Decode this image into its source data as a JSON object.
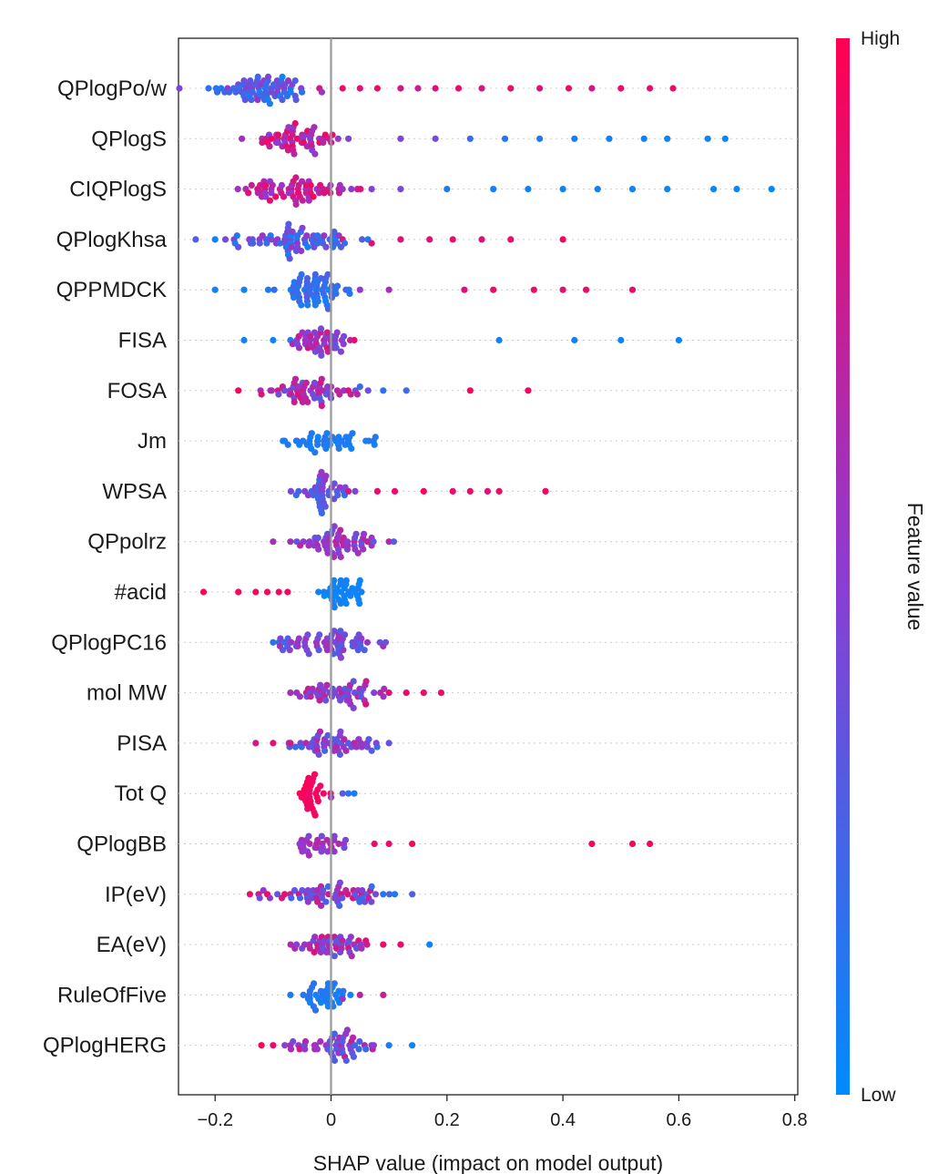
{
  "chart_data": {
    "type": "scatter",
    "subtype": "shap-beeswarm",
    "xlabel": "SHAP value (impact on model output)",
    "xlim": [
      -0.25,
      0.8
    ],
    "xticks": [
      -0.2,
      0,
      0.2,
      0.4,
      0.6,
      0.8
    ],
    "xtick_labels": [
      "−0.2",
      "0",
      "0.2",
      "0.4",
      "0.6",
      "0.8"
    ],
    "features": [
      "QPlogPo/w",
      "QPlogS",
      "CIQPlogS",
      "QPlogKhsa",
      "QPPMDCK",
      "FISA",
      "FOSA",
      "Jm",
      "WPSA",
      "QPpolrz",
      "#acid",
      "QPlogPC16",
      "mol MW",
      "PISA",
      "Tot Q",
      "QPlogBB",
      "IP(eV)",
      "EA(eV)",
      "RuleOfFive",
      "QPlogHERG"
    ],
    "colorbar": {
      "title": "Feature value",
      "high_label": "High",
      "low_label": "Low",
      "high_color": "#ff0051",
      "low_color": "#008bfb"
    },
    "reference_line": 0,
    "series": [
      {
        "feature": "QPlogPo/w",
        "core": {
          "center": -0.13,
          "spread": 0.05,
          "count": 70,
          "v_low": 0.05,
          "v_high": 0.55
        },
        "tail": [
          [
            -0.02,
            0.8
          ],
          [
            0.02,
            0.9
          ],
          [
            0.05,
            0.85
          ],
          [
            0.08,
            0.9
          ],
          [
            0.12,
            0.8
          ],
          [
            0.15,
            0.75
          ],
          [
            0.18,
            0.85
          ],
          [
            0.22,
            0.9
          ],
          [
            0.26,
            0.8
          ],
          [
            0.31,
            0.9
          ],
          [
            0.36,
            0.85
          ],
          [
            0.41,
            0.9
          ],
          [
            0.45,
            0.8
          ],
          [
            0.5,
            0.9
          ],
          [
            0.55,
            0.85
          ],
          [
            0.59,
            0.9
          ]
        ]
      },
      {
        "feature": "QPlogS",
        "core": {
          "center": -0.06,
          "spread": 0.04,
          "count": 55,
          "v_low": 0.45,
          "v_high": 0.95
        },
        "tail": [
          [
            0.03,
            0.45
          ],
          [
            0.12,
            0.45
          ],
          [
            0.18,
            0.4
          ],
          [
            0.24,
            0.2
          ],
          [
            0.3,
            0.12
          ],
          [
            0.36,
            0.1
          ],
          [
            0.42,
            0.08
          ],
          [
            0.48,
            0.06
          ],
          [
            0.54,
            0.05
          ],
          [
            0.58,
            0.05
          ],
          [
            0.65,
            0.04
          ],
          [
            0.68,
            0.03
          ]
        ]
      },
      {
        "feature": "CIQPlogS",
        "core": {
          "center": -0.06,
          "spread": 0.045,
          "count": 65,
          "v_low": 0.5,
          "v_high": 0.95
        },
        "tail": [
          [
            0.02,
            0.55
          ],
          [
            0.07,
            0.45
          ],
          [
            0.12,
            0.4
          ],
          [
            0.2,
            0.1
          ],
          [
            0.28,
            0.08
          ],
          [
            0.34,
            0.06
          ],
          [
            0.4,
            0.06
          ],
          [
            0.46,
            0.05
          ],
          [
            0.52,
            0.04
          ],
          [
            0.58,
            0.04
          ],
          [
            0.66,
            0.03
          ],
          [
            0.7,
            0.03
          ],
          [
            0.76,
            0.02
          ]
        ]
      },
      {
        "feature": "QPlogKhsa",
        "core": {
          "center": -0.06,
          "spread": 0.06,
          "count": 70,
          "v_low": 0.05,
          "v_high": 0.6
        },
        "tail": [
          [
            0.02,
            0.8
          ],
          [
            0.07,
            0.85
          ],
          [
            0.12,
            0.85
          ],
          [
            0.17,
            0.85
          ],
          [
            0.21,
            0.9
          ],
          [
            0.26,
            0.85
          ],
          [
            0.31,
            0.9
          ],
          [
            0.4,
            0.95
          ],
          [
            -0.2,
            0.05
          ]
        ]
      },
      {
        "feature": "QPPMDCK",
        "core": {
          "center": -0.03,
          "spread": 0.03,
          "count": 60,
          "v_low": 0.05,
          "v_high": 0.3
        },
        "tail": [
          [
            -0.2,
            0.05
          ],
          [
            -0.15,
            0.05
          ],
          [
            0.05,
            0.5
          ],
          [
            0.1,
            0.6
          ],
          [
            0.23,
            0.85
          ],
          [
            0.28,
            0.9
          ],
          [
            0.35,
            0.9
          ],
          [
            0.4,
            0.85
          ],
          [
            0.44,
            0.9
          ],
          [
            0.52,
            0.9
          ]
        ]
      },
      {
        "feature": "FISA",
        "core": {
          "center": -0.02,
          "spread": 0.025,
          "count": 45,
          "v_low": 0.35,
          "v_high": 0.8
        },
        "tail": [
          [
            -0.15,
            0.05
          ],
          [
            -0.1,
            0.05
          ],
          [
            -0.07,
            0.08
          ],
          [
            0.04,
            0.9
          ],
          [
            0.29,
            0.05
          ],
          [
            0.42,
            0.05
          ],
          [
            0.5,
            0.05
          ],
          [
            0.6,
            0.05
          ]
        ]
      },
      {
        "feature": "FOSA",
        "core": {
          "center": -0.03,
          "spread": 0.04,
          "count": 55,
          "v_low": 0.3,
          "v_high": 0.85
        },
        "tail": [
          [
            -0.16,
            0.95
          ],
          [
            -0.12,
            0.85
          ],
          [
            0.05,
            0.2
          ],
          [
            0.09,
            0.15
          ],
          [
            0.13,
            0.2
          ],
          [
            0.24,
            0.95
          ],
          [
            0.34,
            0.95
          ]
        ]
      },
      {
        "feature": "Jm",
        "core": {
          "center": -0.01,
          "spread": 0.04,
          "count": 40,
          "v_low": 0.05,
          "v_high": 0.15
        },
        "tail": [
          [
            -0.08,
            0.05
          ],
          [
            0.06,
            0.05
          ]
        ]
      },
      {
        "feature": "WPSA",
        "core": {
          "center": -0.02,
          "spread": 0.025,
          "count": 40,
          "v_low": 0.15,
          "v_high": 0.55
        },
        "tail": [
          [
            -0.06,
            0.2
          ],
          [
            0.03,
            0.8
          ],
          [
            0.08,
            0.9
          ],
          [
            0.11,
            0.9
          ],
          [
            0.16,
            0.95
          ],
          [
            0.21,
            0.9
          ],
          [
            0.24,
            0.9
          ],
          [
            0.27,
            0.85
          ],
          [
            0.29,
            0.9
          ],
          [
            0.37,
            0.95
          ]
        ]
      },
      {
        "feature": "QPpolrz",
        "core": {
          "center": 0.0,
          "spread": 0.04,
          "count": 55,
          "v_low": 0.3,
          "v_high": 0.7
        },
        "tail": [
          [
            -0.1,
            0.6
          ],
          [
            -0.07,
            0.6
          ],
          [
            0.07,
            0.6
          ],
          [
            0.1,
            0.65
          ]
        ]
      },
      {
        "feature": "#acid",
        "core": {
          "center": 0.02,
          "spread": 0.02,
          "count": 35,
          "v_low": 0.03,
          "v_high": 0.08
        },
        "tail": [
          [
            -0.22,
            0.95
          ],
          [
            -0.16,
            0.95
          ],
          [
            -0.13,
            0.95
          ],
          [
            -0.11,
            0.95
          ],
          [
            -0.09,
            0.95
          ],
          [
            -0.075,
            0.95
          ],
          [
            0.05,
            0.05
          ]
        ]
      },
      {
        "feature": "QPlogPC16",
        "core": {
          "center": 0.0,
          "spread": 0.05,
          "count": 60,
          "v_low": 0.25,
          "v_high": 0.6
        },
        "tail": [
          [
            -0.1,
            0.15
          ],
          [
            -0.09,
            0.15
          ],
          [
            -0.08,
            0.2
          ],
          [
            0.09,
            0.6
          ]
        ]
      },
      {
        "feature": "mol MW",
        "core": {
          "center": 0.01,
          "spread": 0.035,
          "count": 50,
          "v_low": 0.3,
          "v_high": 0.75
        },
        "tail": [
          [
            -0.07,
            0.6
          ],
          [
            0.06,
            0.85
          ],
          [
            0.1,
            0.85
          ],
          [
            0.13,
            0.9
          ],
          [
            0.16,
            0.9
          ],
          [
            0.19,
            0.9
          ]
        ]
      },
      {
        "feature": "PISA",
        "core": {
          "center": 0.0,
          "spread": 0.04,
          "count": 50,
          "v_low": 0.2,
          "v_high": 0.7
        },
        "tail": [
          [
            -0.13,
            0.8
          ],
          [
            -0.1,
            0.85
          ],
          [
            -0.07,
            0.8
          ],
          [
            0.07,
            0.3
          ],
          [
            0.1,
            0.35
          ]
        ]
      },
      {
        "feature": "Tot Q",
        "core": {
          "center": -0.03,
          "spread": 0.01,
          "count": 30,
          "v_low": 0.9,
          "v_high": 0.98
        },
        "tail": [
          [
            0.0,
            0.6
          ],
          [
            0.02,
            0.3
          ],
          [
            0.03,
            0.15
          ],
          [
            0.04,
            0.1
          ]
        ]
      },
      {
        "feature": "QPlogBB",
        "core": {
          "center": -0.02,
          "spread": 0.02,
          "count": 30,
          "v_low": 0.4,
          "v_high": 0.7
        },
        "tail": [
          [
            0.075,
            0.9
          ],
          [
            0.1,
            0.9
          ],
          [
            0.14,
            0.95
          ],
          [
            0.45,
            0.95
          ],
          [
            0.52,
            0.95
          ],
          [
            0.55,
            0.95
          ]
        ]
      },
      {
        "feature": "IP(eV)",
        "core": {
          "center": 0.0,
          "spread": 0.05,
          "count": 60,
          "v_low": 0.2,
          "v_high": 0.85
        },
        "tail": [
          [
            -0.14,
            0.9
          ],
          [
            -0.11,
            0.9
          ],
          [
            -0.08,
            0.9
          ],
          [
            0.07,
            0.2
          ],
          [
            0.09,
            0.15
          ],
          [
            0.11,
            0.1
          ]
        ]
      },
      {
        "feature": "EA(eV)",
        "core": {
          "center": 0.0,
          "spread": 0.035,
          "count": 45,
          "v_low": 0.3,
          "v_high": 0.85
        },
        "tail": [
          [
            -0.05,
            0.4
          ],
          [
            0.06,
            0.85
          ],
          [
            0.09,
            0.9
          ],
          [
            0.12,
            0.9
          ],
          [
            0.17,
            0.05
          ]
        ]
      },
      {
        "feature": "RuleOfFive",
        "core": {
          "center": -0.01,
          "spread": 0.02,
          "count": 35,
          "v_low": 0.05,
          "v_high": 0.15
        },
        "tail": [
          [
            -0.07,
            0.1
          ],
          [
            0.02,
            0.55
          ],
          [
            0.05,
            0.7
          ],
          [
            0.09,
            0.75
          ]
        ]
      },
      {
        "feature": "QPlogHERG",
        "core": {
          "center": 0.0,
          "spread": 0.04,
          "count": 50,
          "v_low": 0.2,
          "v_high": 0.8
        },
        "tail": [
          [
            -0.12,
            0.95
          ],
          [
            -0.1,
            0.9
          ],
          [
            -0.07,
            0.6
          ],
          [
            0.06,
            0.2
          ],
          [
            0.1,
            0.1
          ],
          [
            0.14,
            0.05
          ]
        ]
      }
    ]
  }
}
